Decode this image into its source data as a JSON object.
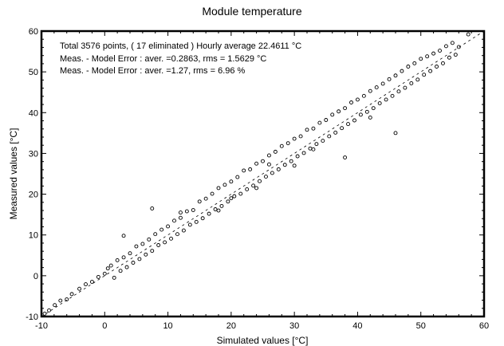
{
  "chart_data": {
    "type": "scatter",
    "title": "Module temperature",
    "xlabel": "Simulated values  [°C]",
    "ylabel": "Measured values  [°C]",
    "xlim": [
      -10,
      60
    ],
    "ylim": [
      -10,
      60
    ],
    "xticks": [
      "-10",
      "0",
      "10",
      "20",
      "30",
      "40",
      "50",
      "60"
    ],
    "yticks": [
      "-10",
      "0",
      "10",
      "20",
      "30",
      "40",
      "50",
      "60"
    ],
    "grid": false,
    "reference_line": "y = x (dashed)",
    "annotations": [
      "Total  3576 points, (  17 eliminated )  Hourly average  22.4611 °C",
      "Meas. - Model Error  : aver. =0.2863, rms = 1.5629 °C",
      "Meas. - Model Error  : aver. =1.27, rms = 6.96 %"
    ],
    "points": [
      [
        -9.5,
        -9.3
      ],
      [
        -8.8,
        -8.5
      ],
      [
        -7.9,
        -7.2
      ],
      [
        -7,
        -6.1
      ],
      [
        -6,
        -5.8
      ],
      [
        -5.2,
        -4.5
      ],
      [
        -4,
        -3.2
      ],
      [
        -3,
        -2.1
      ],
      [
        -2,
        -1.5
      ],
      [
        -1,
        -0.3
      ],
      [
        0,
        0.5
      ],
      [
        0.5,
        1.8
      ],
      [
        1,
        2.5
      ],
      [
        1.5,
        -0.5
      ],
      [
        2,
        3.8
      ],
      [
        2.5,
        1.2
      ],
      [
        3,
        4.5
      ],
      [
        3,
        9.8
      ],
      [
        3.5,
        2.1
      ],
      [
        4,
        5.5
      ],
      [
        4.5,
        3.2
      ],
      [
        5,
        7.2
      ],
      [
        5.5,
        4.1
      ],
      [
        6,
        7.8
      ],
      [
        6.5,
        5.2
      ],
      [
        7,
        8.9
      ],
      [
        7.5,
        16.5
      ],
      [
        7.5,
        6.1
      ],
      [
        8,
        10.2
      ],
      [
        8.5,
        7.5
      ],
      [
        9,
        11.3
      ],
      [
        9.5,
        8.2
      ],
      [
        10,
        12.1
      ],
      [
        10.5,
        9.1
      ],
      [
        11,
        13.5
      ],
      [
        11.5,
        10.2
      ],
      [
        12,
        14.2
      ],
      [
        12.5,
        11.1
      ],
      [
        13,
        15.8
      ],
      [
        13.5,
        12.5
      ],
      [
        14,
        16.1
      ],
      [
        14.5,
        13.2
      ],
      [
        15,
        18.2
      ],
      [
        15.5,
        14.1
      ],
      [
        16,
        18.9
      ],
      [
        16.5,
        15.2
      ],
      [
        17,
        20.1
      ],
      [
        17.5,
        16.3
      ],
      [
        18,
        21.5
      ],
      [
        18.5,
        17.1
      ],
      [
        19,
        22.3
      ],
      [
        19.5,
        18.2
      ],
      [
        20,
        23.1
      ],
      [
        20.5,
        19.5
      ],
      [
        21,
        24.2
      ],
      [
        21.5,
        20.1
      ],
      [
        22,
        25.8
      ],
      [
        22.5,
        21.2
      ],
      [
        23,
        26.1
      ],
      [
        23.5,
        22.1
      ],
      [
        24,
        27.5
      ],
      [
        24.5,
        23.2
      ],
      [
        25,
        28.1
      ],
      [
        25.5,
        24.3
      ],
      [
        26,
        29.5
      ],
      [
        26.5,
        25.2
      ],
      [
        27,
        30.4
      ],
      [
        27.5,
        26.1
      ],
      [
        28,
        31.8
      ],
      [
        28.5,
        27.2
      ],
      [
        29,
        32.5
      ],
      [
        29.5,
        28.1
      ],
      [
        30,
        33.6
      ],
      [
        30.5,
        29.3
      ],
      [
        31,
        34.2
      ],
      [
        31.5,
        30.1
      ],
      [
        32,
        35.8
      ],
      [
        32.5,
        31.2
      ],
      [
        33,
        36.1
      ],
      [
        33.5,
        32.3
      ],
      [
        34,
        37.5
      ],
      [
        34.5,
        33.1
      ],
      [
        35,
        38.2
      ],
      [
        35.5,
        34.2
      ],
      [
        36,
        39.5
      ],
      [
        36.5,
        35.1
      ],
      [
        37,
        40.3
      ],
      [
        37.5,
        36.2
      ],
      [
        38,
        41.1
      ],
      [
        38.5,
        37.2
      ],
      [
        39,
        42.5
      ],
      [
        39.5,
        38.1
      ],
      [
        40,
        43.2
      ],
      [
        40.5,
        39.5
      ],
      [
        41,
        44.1
      ],
      [
        41.5,
        40.2
      ],
      [
        42,
        45.3
      ],
      [
        42.5,
        41.1
      ],
      [
        43,
        46.2
      ],
      [
        43.5,
        42.3
      ],
      [
        44,
        47.1
      ],
      [
        44.5,
        43.2
      ],
      [
        45,
        48.2
      ],
      [
        45.5,
        44.1
      ],
      [
        46,
        49.1
      ],
      [
        46.5,
        45.2
      ],
      [
        47,
        50.2
      ],
      [
        47.5,
        46.1
      ],
      [
        48,
        51.3
      ],
      [
        48.5,
        47.2
      ],
      [
        49,
        52.1
      ],
      [
        49.5,
        48.1
      ],
      [
        50,
        53.2
      ],
      [
        50.5,
        49.3
      ],
      [
        51,
        53.8
      ],
      [
        51.5,
        50.2
      ],
      [
        52,
        54.5
      ],
      [
        52.5,
        51.3
      ],
      [
        53,
        55.2
      ],
      [
        53.5,
        52.1
      ],
      [
        54,
        56.3
      ],
      [
        54.5,
        53.5
      ],
      [
        55,
        57.1
      ],
      [
        55.5,
        54.2
      ],
      [
        56,
        56.1
      ],
      [
        57.5,
        59.2
      ],
      [
        46,
        35
      ],
      [
        38,
        29
      ],
      [
        42,
        38.8
      ],
      [
        30,
        27
      ],
      [
        24,
        21.5
      ],
      [
        18,
        16
      ],
      [
        12,
        15.5
      ],
      [
        20,
        19
      ],
      [
        26,
        27.3
      ],
      [
        33,
        31
      ]
    ]
  }
}
